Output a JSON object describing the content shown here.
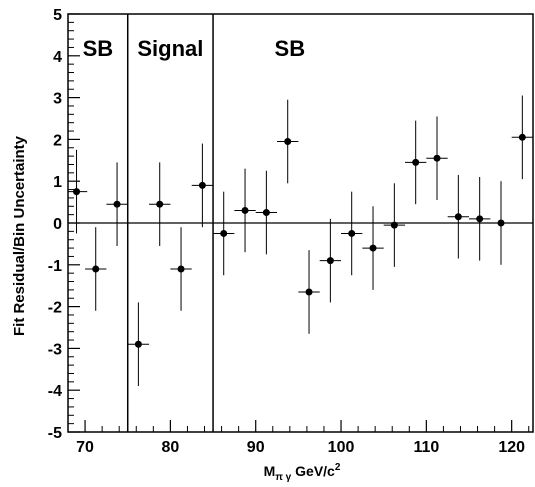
{
  "chart_data": {
    "type": "scatter",
    "xlabel_main": "M",
    "xlabel_sub": "π γ",
    "xlabel_unit": " GeV/c",
    "xlabel_sup": "2",
    "ylabel": "Fit Residual/Bin Uncertainty",
    "xlim": [
      68,
      122.5
    ],
    "ylim": [
      -5,
      5
    ],
    "x_ticks": [
      70,
      80,
      90,
      100,
      110,
      120
    ],
    "y_ticks": [
      -5,
      -4,
      -3,
      -2,
      -1,
      0,
      1,
      2,
      3,
      4,
      5
    ],
    "region_boundaries": [
      75,
      85
    ],
    "region_labels": [
      {
        "text": "SB",
        "x": 71.5
      },
      {
        "text": "Signal",
        "x": 80
      },
      {
        "text": "SB",
        "x": 94
      }
    ],
    "x_bin_halfwidth": 1.25,
    "points": [
      {
        "x": 69.0,
        "y": 0.75,
        "err": 1.0
      },
      {
        "x": 71.25,
        "y": -1.1,
        "err": 1.0
      },
      {
        "x": 73.75,
        "y": 0.45,
        "err": 1.0
      },
      {
        "x": 76.25,
        "y": -2.9,
        "err": 1.0
      },
      {
        "x": 78.75,
        "y": 0.45,
        "err": 1.0
      },
      {
        "x": 81.25,
        "y": -1.1,
        "err": 1.0
      },
      {
        "x": 83.75,
        "y": 0.9,
        "err": 1.0
      },
      {
        "x": 86.25,
        "y": -0.25,
        "err": 1.0
      },
      {
        "x": 88.75,
        "y": 0.3,
        "err": 1.0
      },
      {
        "x": 91.25,
        "y": 0.25,
        "err": 1.0
      },
      {
        "x": 93.75,
        "y": 1.95,
        "err": 1.0
      },
      {
        "x": 96.25,
        "y": -1.65,
        "err": 1.0
      },
      {
        "x": 98.75,
        "y": -0.9,
        "err": 1.0
      },
      {
        "x": 101.25,
        "y": -0.25,
        "err": 1.0
      },
      {
        "x": 103.75,
        "y": -0.6,
        "err": 1.0
      },
      {
        "x": 106.25,
        "y": -0.05,
        "err": 1.0
      },
      {
        "x": 108.75,
        "y": 1.45,
        "err": 1.0
      },
      {
        "x": 111.25,
        "y": 1.55,
        "err": 1.0
      },
      {
        "x": 113.75,
        "y": 0.15,
        "err": 1.0
      },
      {
        "x": 116.25,
        "y": 0.1,
        "err": 1.0
      },
      {
        "x": 118.75,
        "y": 0.0,
        "err": 1.0
      },
      {
        "x": 121.25,
        "y": 2.05,
        "err": 1.0
      }
    ]
  }
}
